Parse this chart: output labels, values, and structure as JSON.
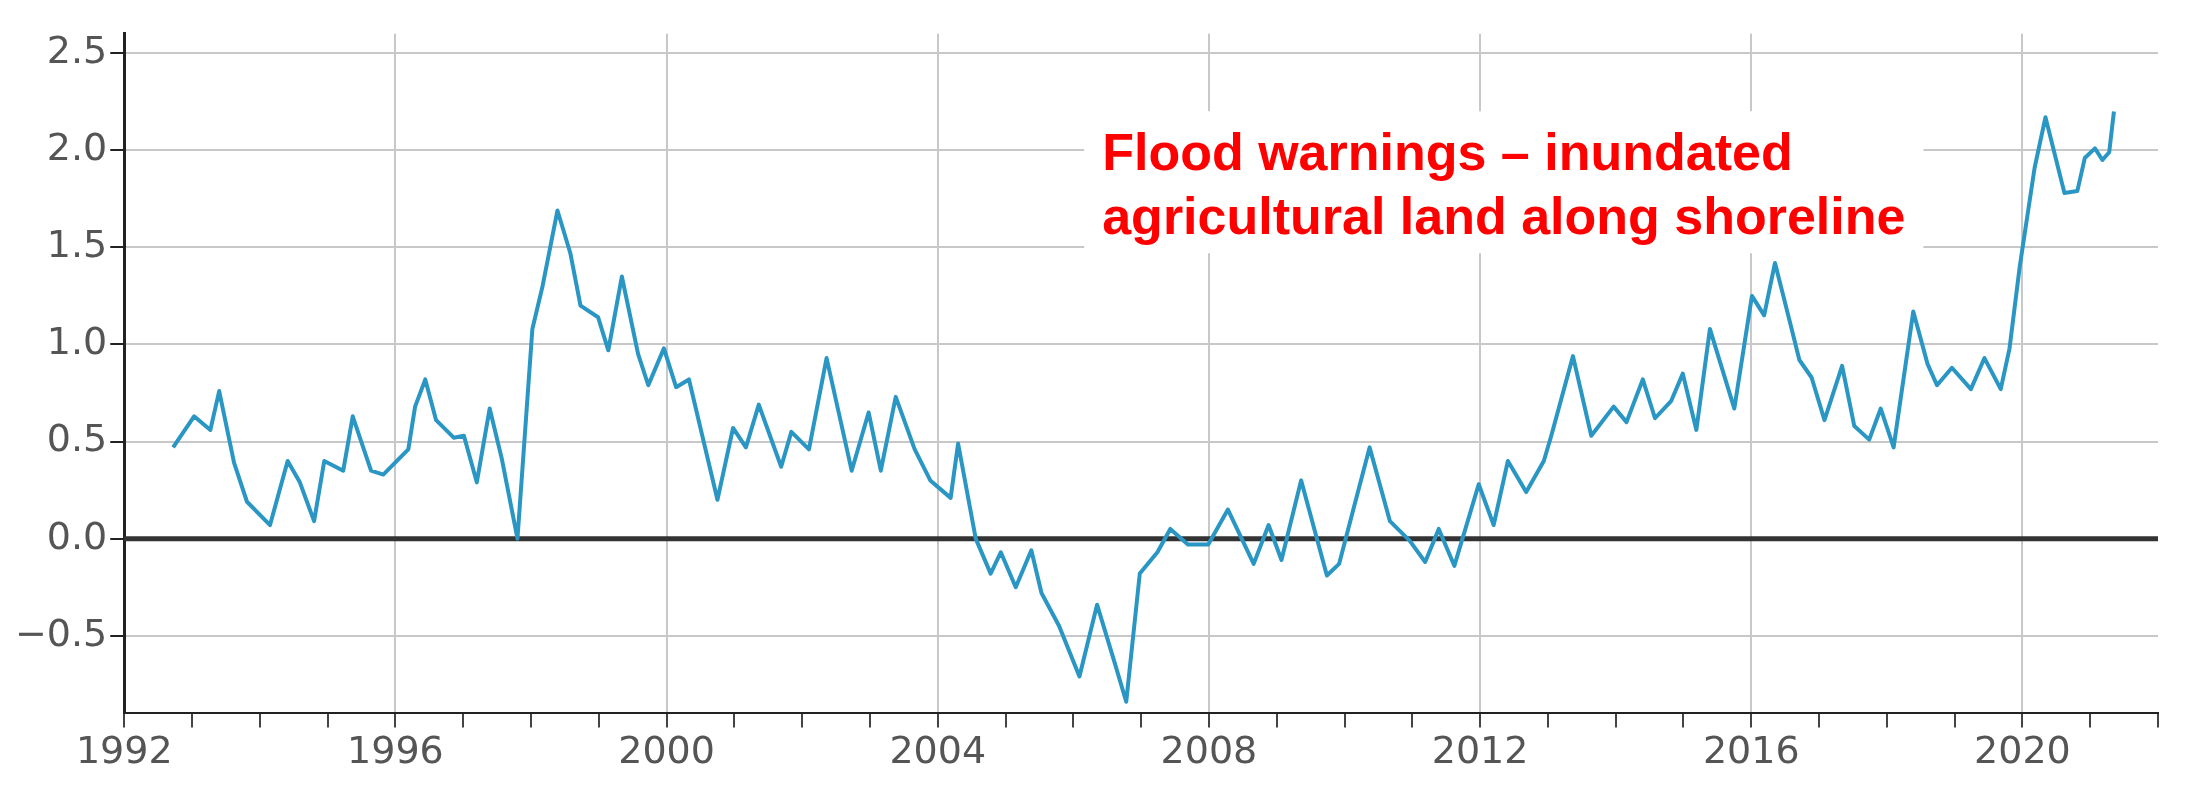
{
  "chart_data": {
    "type": "line",
    "x": [
      1992.72,
      1993.03,
      1993.27,
      1993.4,
      1993.62,
      1993.81,
      1994.15,
      1994.41,
      1994.59,
      1994.8,
      1994.95,
      1995.23,
      1995.37,
      1995.64,
      1995.82,
      1996.19,
      1996.29,
      1996.44,
      1996.6,
      1996.86,
      1997.01,
      1997.2,
      1997.39,
      1997.57,
      1997.8,
      1998.02,
      1998.17,
      1998.39,
      1998.58,
      1998.73,
      1998.99,
      1999.14,
      1999.34,
      1999.58,
      1999.73,
      1999.96,
      2000.14,
      2000.33,
      2000.75,
      2000.98,
      2001.17,
      2001.36,
      2001.69,
      2001.84,
      2002.1,
      2002.36,
      2002.73,
      2002.98,
      2003.16,
      2003.38,
      2003.66,
      2003.89,
      2004.19,
      2004.3,
      2004.56,
      2004.78,
      2004.93,
      2005.15,
      2005.38,
      2005.53,
      2005.79,
      2006.09,
      2006.35,
      2006.61,
      2006.78,
      2006.98,
      2007.24,
      2007.43,
      2007.69,
      2007.99,
      2008.28,
      2008.66,
      2008.88,
      2009.07,
      2009.36,
      2009.74,
      2009.92,
      2010.37,
      2010.67,
      2010.96,
      2011.19,
      2011.39,
      2011.62,
      2011.98,
      2012.2,
      2012.41,
      2012.68,
      2012.94,
      2013.05,
      2013.37,
      2013.64,
      2013.97,
      2014.16,
      2014.4,
      2014.58,
      2014.82,
      2014.99,
      2015.19,
      2015.39,
      2015.75,
      2016.01,
      2016.19,
      2016.35,
      2016.56,
      2016.71,
      2016.89,
      2017.08,
      2017.34,
      2017.52,
      2017.74,
      2017.91,
      2018.1,
      2018.39,
      2018.6,
      2018.74,
      2018.96,
      2019.24,
      2019.44,
      2019.68,
      2019.81,
      2019.96,
      2020.18,
      2020.34,
      2020.62,
      2020.81,
      2020.92,
      2021.07,
      2021.18,
      2021.28,
      2021.35
    ],
    "series": [
      {
        "color": "#2a96c4",
        "values": [
          0.47,
          0.63,
          0.56,
          0.76,
          0.39,
          0.19,
          0.07,
          0.4,
          0.29,
          0.09,
          0.4,
          0.35,
          0.63,
          0.35,
          0.33,
          0.46,
          0.68,
          0.82,
          0.61,
          0.52,
          0.53,
          0.29,
          0.67,
          0.41,
          0.0,
          1.08,
          1.3,
          1.69,
          1.47,
          1.2,
          1.14,
          0.97,
          1.35,
          0.95,
          0.79,
          0.98,
          0.78,
          0.82,
          0.2,
          0.57,
          0.47,
          0.69,
          0.37,
          0.55,
          0.46,
          0.93,
          0.35,
          0.65,
          0.35,
          0.73,
          0.46,
          0.3,
          0.21,
          0.49,
          0.0,
          -0.18,
          -0.07,
          -0.25,
          -0.06,
          -0.28,
          -0.45,
          -0.71,
          -0.34,
          -0.64,
          -0.84,
          -0.18,
          -0.07,
          0.05,
          -0.03,
          -0.03,
          0.15,
          -0.13,
          0.07,
          -0.11,
          0.3,
          -0.19,
          -0.13,
          0.47,
          0.09,
          -0.01,
          -0.12,
          0.05,
          -0.14,
          0.28,
          0.07,
          0.4,
          0.24,
          0.4,
          0.53,
          0.94,
          0.53,
          0.68,
          0.6,
          0.82,
          0.62,
          0.71,
          0.85,
          0.56,
          1.08,
          0.67,
          1.25,
          1.15,
          1.42,
          1.13,
          0.92,
          0.83,
          0.61,
          0.89,
          0.58,
          0.51,
          0.67,
          0.47,
          1.17,
          0.9,
          0.79,
          0.88,
          0.77,
          0.93,
          0.77,
          0.98,
          1.4,
          1.91,
          2.17,
          1.78,
          1.79,
          1.96,
          2.01,
          1.95,
          1.99,
          2.2
        ]
      }
    ],
    "xlim": [
      1992,
      2022
    ],
    "xticks": [
      1992,
      {
        "value": 1993,
        "label": null
      },
      {
        "value": 1994,
        "label": null
      },
      {
        "value": 1995,
        "label": null
      },
      1996,
      {
        "value": 1997,
        "label": null
      },
      {
        "value": 1998,
        "label": null
      },
      {
        "value": 1999,
        "label": null
      },
      2000,
      {
        "value": 2001,
        "label": null
      },
      {
        "value": 2002,
        "label": null
      },
      {
        "value": 2003,
        "label": null
      },
      2004,
      {
        "value": 2005,
        "label": null
      },
      {
        "value": 2006,
        "label": null
      },
      {
        "value": 2007,
        "label": null
      },
      2008,
      {
        "value": 2009,
        "label": null
      },
      {
        "value": 2010,
        "label": null
      },
      {
        "value": 2011,
        "label": null
      },
      2012,
      {
        "value": 2013,
        "label": null
      },
      {
        "value": 2014,
        "label": null
      },
      {
        "value": 2015,
        "label": null
      },
      2016,
      {
        "value": 2017,
        "label": null
      },
      {
        "value": 2018,
        "label": null
      },
      {
        "value": 2019,
        "label": null
      },
      2020,
      {
        "value": 2021,
        "label": null
      },
      {
        "value": 2022,
        "label": null
      }
    ],
    "ylim": [
      -0.9,
      2.6
    ],
    "yticks": [
      {
        "value": -0.5,
        "label": "−0.5"
      },
      {
        "value": 0,
        "label": "0.0"
      },
      {
        "value": 0.5,
        "label": "0.5"
      },
      {
        "value": 1,
        "label": "1.0"
      },
      {
        "value": 1.5,
        "label": "1.5"
      },
      {
        "value": 2,
        "label": "2.0"
      },
      {
        "value": 2.5,
        "label": "2.5"
      }
    ],
    "grid": true,
    "marker": "none",
    "ref_lines": [
      {
        "axis": "y",
        "value": 0,
        "color": "#333333"
      }
    ],
    "annotations": [
      "Flood warnings – inundated\nagricultural land along shoreline"
    ]
  }
}
